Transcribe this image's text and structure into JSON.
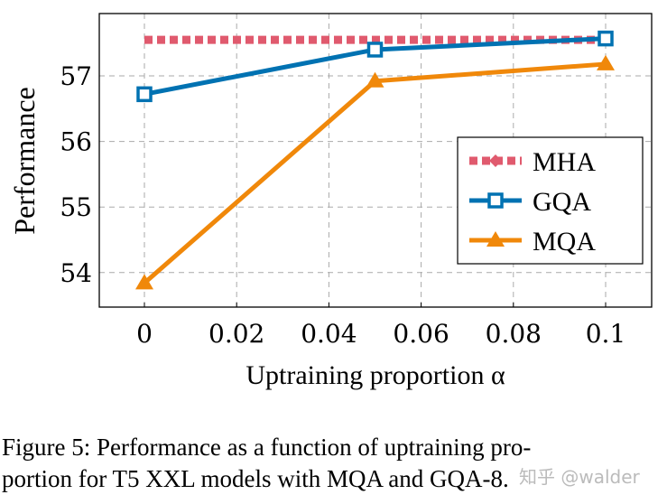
{
  "chart_data": {
    "type": "line",
    "xlabel": "Uptraining proportion α",
    "ylabel": "Performance",
    "xlim": [
      -0.0098,
      0.1
    ],
    "ylim": [
      53.45,
      57.95
    ],
    "xticks": [
      "0",
      "0.02",
      "0.04",
      "0.06",
      "0.08",
      "0.1"
    ],
    "xtick_values": [
      0,
      0.02,
      0.04,
      0.06,
      0.08,
      0.1
    ],
    "yticks": [
      "54",
      "55",
      "56",
      "57"
    ],
    "ytick_values": [
      54,
      55,
      56,
      57
    ],
    "grid": true,
    "legend_position": "center-right",
    "series": [
      {
        "name": "MHA",
        "x": [
          0,
          0.1
        ],
        "y": [
          57.55,
          57.55
        ],
        "color": "#e05a6e",
        "style": "dotted",
        "marker": "diamond"
      },
      {
        "name": "GQA",
        "x": [
          0,
          0.05,
          0.1
        ],
        "y": [
          56.72,
          57.4,
          57.57
        ],
        "color": "#0072b2",
        "style": "solid",
        "marker": "square"
      },
      {
        "name": "MQA",
        "x": [
          0,
          0.05,
          0.1
        ],
        "y": [
          53.84,
          56.92,
          57.18
        ],
        "color": "#f0880a",
        "style": "solid",
        "marker": "triangle"
      }
    ]
  },
  "caption": {
    "line1": "Figure 5: Performance as a function of uptraining pro-",
    "line2": "portion for T5 XXL models with MQA and GQA-8."
  },
  "watermark": "知乎 @walder"
}
